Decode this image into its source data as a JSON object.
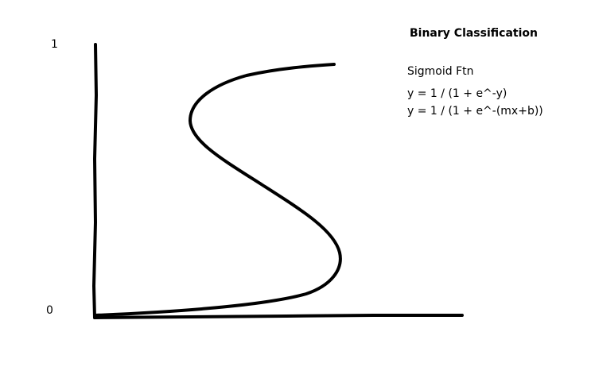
{
  "title": "Binary Classification",
  "axis": {
    "y_top_label": "1",
    "y_bottom_label": "0"
  },
  "notes": {
    "heading": "Sigmoid Ftn",
    "formula_1": "y = 1 / (1 + e^-y)",
    "formula_2": "y = 1 / (1 + e^-(mx+b))"
  },
  "colors": {
    "ink": "#000000",
    "background": "#ffffff"
  }
}
